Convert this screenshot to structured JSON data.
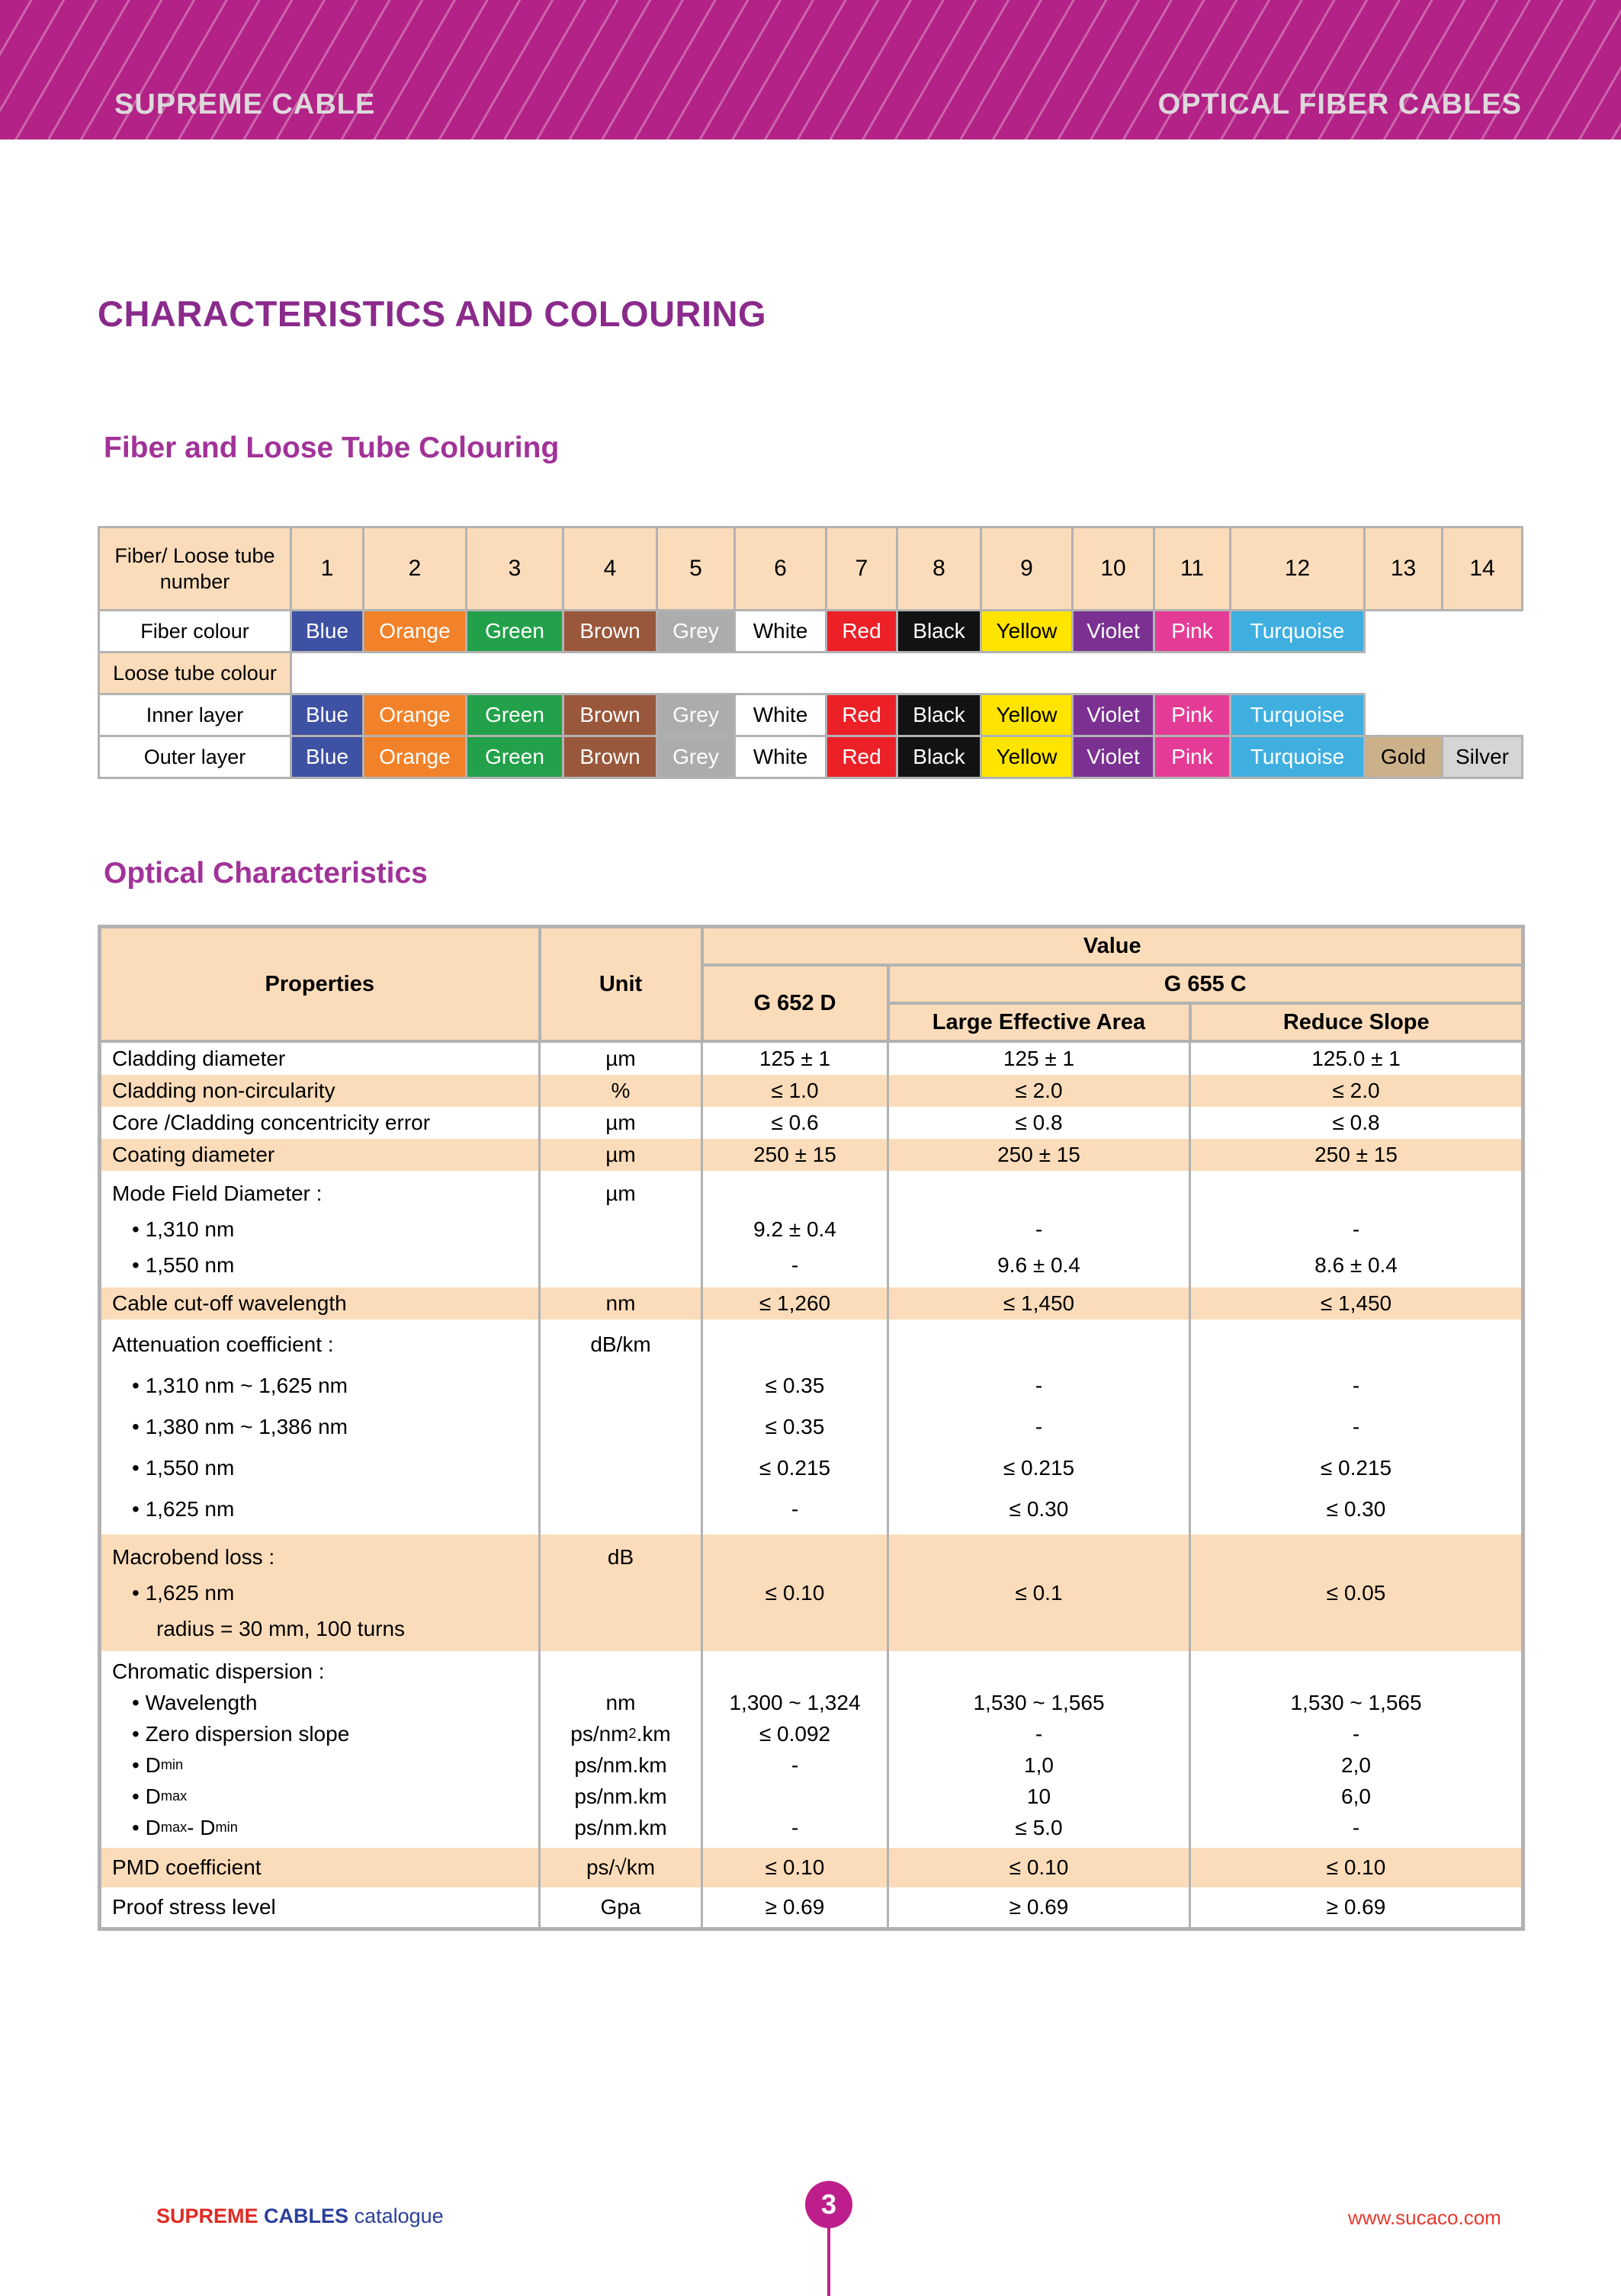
{
  "banner": {
    "left": "SUPREME CABLE",
    "right": "OPTICAL FIBER CABLES"
  },
  "page_title": "CHARACTERISTICS AND COLOURING",
  "colors": {
    "banner_bg": "#B32287",
    "heading_dark": "#8A2A8B",
    "heading_bright": "#A13298",
    "peach": "#FBDCBA",
    "table_border": "#B2B2B2",
    "page_marker": "#BE1E8C",
    "footer_red": "#E02B24",
    "footer_blue": "#2B3F9B",
    "url_red": "#E8392E"
  },
  "colouring_table": {
    "section_title": "Fiber and Loose Tube Colouring",
    "header_label_line1": "Fiber/ Loose tube",
    "header_label_line2": "number",
    "numbers": [
      "1",
      "2",
      "3",
      "4",
      "5",
      "6",
      "7",
      "8",
      "9",
      "10",
      "11",
      "12",
      "13",
      "14"
    ],
    "row_labels": {
      "fiber": "Fiber colour",
      "loose": "Loose tube colour",
      "inner": "Inner layer",
      "outer": "Outer layer"
    },
    "colours": [
      {
        "name": "Blue",
        "bg": "#3E51A2",
        "fg": "#FFFFFF"
      },
      {
        "name": "Orange",
        "bg": "#F28229",
        "fg": "#FFFFFF"
      },
      {
        "name": "Green",
        "bg": "#23A14A",
        "fg": "#FFFFFF"
      },
      {
        "name": "Brown",
        "bg": "#99573B",
        "fg": "#FFFFFF"
      },
      {
        "name": "Grey",
        "bg": "#ACACAC",
        "fg": "#FFFFFF"
      },
      {
        "name": "White",
        "bg": "#FFFFFF",
        "fg": "#000000"
      },
      {
        "name": "Red",
        "bg": "#EC2027",
        "fg": "#FFFFFF"
      },
      {
        "name": "Black",
        "bg": "#121212",
        "fg": "#FFFFFF"
      },
      {
        "name": "Yellow",
        "bg": "#FFE400",
        "fg": "#000000"
      },
      {
        "name": "Violet",
        "bg": "#7A3191",
        "fg": "#FFFFFF"
      },
      {
        "name": "Pink",
        "bg": "#E43C96",
        "fg": "#FFFFFF"
      },
      {
        "name": "Turquoise",
        "bg": "#3FAFE0",
        "fg": "#FFFFFF"
      }
    ],
    "extra_outer": [
      {
        "name": "Gold",
        "bg": "#CBB189",
        "fg": "#000000"
      },
      {
        "name": "Silver",
        "bg": "#D5D5D5",
        "fg": "#000000"
      }
    ]
  },
  "optical_table": {
    "section_title": "Optical Characteristics",
    "headers": {
      "properties": "Properties",
      "unit": "Unit",
      "value": "Value",
      "g652d": "G 652 D",
      "g655c": "G 655 C",
      "lea": "Large Effective Area",
      "rs": "Reduce Slope"
    },
    "rows": [
      {
        "type": "simple",
        "shade": "white",
        "prop": "Cladding diameter",
        "unit": "µm",
        "g652d": "125 ± 1",
        "lea": "125 ± 1",
        "rs": "125.0 ± 1"
      },
      {
        "type": "simple",
        "shade": "peach",
        "prop": "Cladding non-circularity",
        "unit": "%",
        "g652d": "≤ 1.0",
        "lea": "≤ 2.0",
        "rs": "≤ 2.0"
      },
      {
        "type": "simple",
        "shade": "white",
        "prop": "Core /Cladding concentricity error",
        "unit": "µm",
        "g652d": "≤ 0.6",
        "lea": "≤ 0.8",
        "rs": "≤ 0.8"
      },
      {
        "type": "simple",
        "shade": "peach",
        "prop": "Coating diameter",
        "unit": "µm",
        "g652d": "250 ± 15",
        "lea": "250 ± 15",
        "rs": "250 ± 15"
      },
      {
        "type": "block",
        "shade": "white",
        "lines": [
          {
            "prop": "Mode Field Diameter :",
            "ind": 0,
            "unit": "µm",
            "g652d": "",
            "lea": "",
            "rs": ""
          },
          {
            "prop": "• 1,310 nm",
            "ind": 1,
            "unit": "",
            "g652d": "9.2 ± 0.4",
            "lea": "-",
            "rs": "-"
          },
          {
            "prop": "• 1,550 nm",
            "ind": 1,
            "unit": "",
            "g652d": "-",
            "lea": "9.6 ± 0.4",
            "rs": "8.6 ± 0.4"
          }
        ]
      },
      {
        "type": "simple",
        "shade": "peach",
        "prop": "Cable cut-off wavelength",
        "unit": "nm",
        "g652d": "≤ 1,260",
        "lea": "≤ 1,450",
        "rs": "≤ 1,450"
      },
      {
        "type": "block",
        "shade": "white",
        "lines": [
          {
            "prop": "Attenuation coefficient :",
            "ind": 0,
            "unit": "dB/km",
            "g652d": "",
            "lea": "",
            "rs": ""
          },
          {
            "prop": "• 1,310 nm ~ 1,625 nm",
            "ind": 1,
            "unit": "",
            "g652d": "≤ 0.35",
            "lea": "-",
            "rs": "-"
          },
          {
            "prop": "• 1,380 nm ~ 1,386 nm",
            "ind": 1,
            "unit": "",
            "g652d": "≤ 0.35",
            "lea": "-",
            "rs": "-"
          },
          {
            "prop": "• 1,550 nm",
            "ind": 1,
            "unit": "",
            "g652d": "≤ 0.215",
            "lea": "≤ 0.215",
            "rs": "≤ 0.215"
          },
          {
            "prop": "• 1,625 nm",
            "ind": 1,
            "unit": "",
            "g652d": "-",
            "lea": "≤ 0.30",
            "rs": "≤ 0.30"
          }
        ]
      },
      {
        "type": "block",
        "shade": "peach",
        "lines": [
          {
            "prop": "Macrobend loss :",
            "ind": 0,
            "unit": "dB",
            "g652d": "",
            "lea": "",
            "rs": ""
          },
          {
            "prop": "• 1,625 nm",
            "ind": 1,
            "unit": "",
            "g652d": "≤ 0.10",
            "lea": "≤ 0.1",
            "rs": "≤ 0.05"
          },
          {
            "prop": "radius = 30 mm, 100 turns",
            "ind": 2,
            "unit": "",
            "g652d": "",
            "lea": "",
            "rs": ""
          }
        ]
      },
      {
        "type": "block",
        "shade": "white",
        "lines": [
          {
            "prop": "Chromatic dispersion :",
            "ind": 0,
            "unit": "",
            "g652d": "",
            "lea": "",
            "rs": ""
          },
          {
            "prop": "• Wavelength",
            "ind": 1,
            "unit": "nm",
            "g652d": "1,300 ~ 1,324",
            "lea": "1,530 ~ 1,565",
            "rs": "1,530 ~ 1,565"
          },
          {
            "prop": "• Zero dispersion slope",
            "ind": 1,
            "unit": "ps/nm^{2}.km",
            "g652d": "≤ 0.092",
            "lea": "-",
            "rs": "-"
          },
          {
            "prop": "• D_{min}",
            "ind": 1,
            "unit": "ps/nm.km",
            "g652d": "-",
            "lea": "1,0",
            "rs": "2,0"
          },
          {
            "prop": "• D_{max}",
            "ind": 1,
            "unit": "ps/nm.km",
            "g652d": "",
            "lea": "10",
            "rs": "6,0"
          },
          {
            "prop": "• D_{max} - D_{min}",
            "ind": 1,
            "unit": "ps/nm.km",
            "g652d": "-",
            "lea": "≤ 5.0",
            "rs": "-"
          }
        ]
      },
      {
        "type": "simple",
        "shade": "peach",
        "prop": "PMD coefficient",
        "unit": "ps/√km",
        "g652d": "≤ 0.10",
        "lea": "≤ 0.10",
        "rs": "≤ 0.10"
      },
      {
        "type": "simple",
        "shade": "white",
        "prop": "Proof stress level",
        "unit": "Gpa",
        "g652d": "≥ 0.69",
        "lea": "≥ 0.69",
        "rs": "≥ 0.69"
      }
    ]
  },
  "footer": {
    "brand_word1": "SUPREME",
    "brand_word2": "CABLES",
    "brand_word3": "catalogue",
    "page_number": "3",
    "url": "www.sucaco.com"
  }
}
